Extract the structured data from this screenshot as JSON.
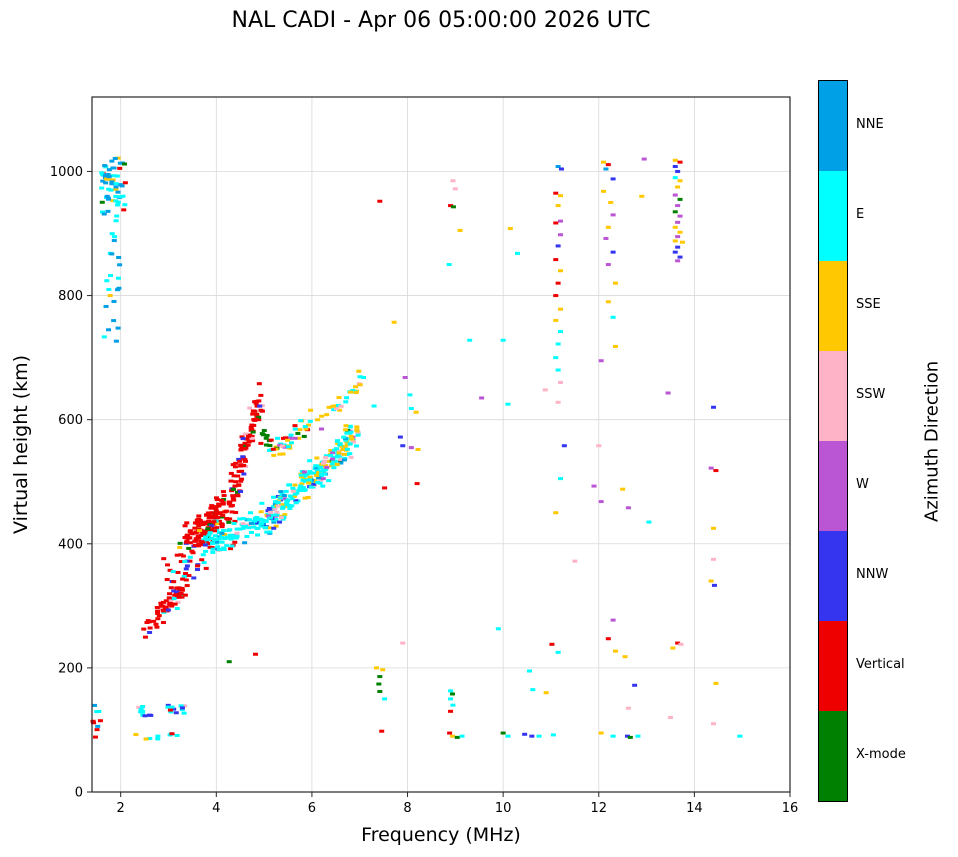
{
  "title": "NAL CADI - Apr 06 05:00:00 2026 UTC",
  "chart_data": {
    "type": "scatter",
    "title": "NAL CADI - Apr 06 05:00:00 2026 UTC",
    "xlabel": "Frequency (MHz)",
    "ylabel": "Virtual height (km)",
    "xlim": [
      1.4,
      16
    ],
    "ylim": [
      0,
      1120
    ],
    "xticks": [
      2,
      4,
      6,
      8,
      10,
      12,
      14,
      16
    ],
    "yticks": [
      0,
      200,
      400,
      600,
      800,
      1000
    ],
    "grid": true,
    "legend_position": "right-colorbar",
    "colorbar_title": "Azimuth Direction",
    "categories": [
      {
        "label": "NNE",
        "color": "#00A0E6"
      },
      {
        "label": "E",
        "color": "#00FFFF"
      },
      {
        "label": "SSE",
        "color": "#FFC800"
      },
      {
        "label": "SSW",
        "color": "#FFB3C6"
      },
      {
        "label": "W",
        "color": "#BA55D3"
      },
      {
        "label": "NNW",
        "color": "#3535F0"
      },
      {
        "label": "Vertical",
        "color": "#EE0000"
      },
      {
        "label": "X-mode",
        "color": "#008000"
      }
    ],
    "points": [
      [
        1.78,
        800,
        2
      ],
      [
        2.08,
        1012,
        7
      ],
      [
        1.98,
        1005,
        6
      ],
      [
        2.9,
        376,
        6
      ],
      [
        2.98,
        366,
        6
      ],
      [
        4.82,
        222,
        6
      ],
      [
        4.27,
        210,
        7
      ],
      [
        4.9,
        658,
        6
      ],
      [
        7.35,
        200,
        2
      ],
      [
        7.48,
        197,
        2
      ],
      [
        7.42,
        186,
        7
      ],
      [
        7.4,
        174,
        7
      ],
      [
        7.42,
        162,
        7
      ],
      [
        7.52,
        150,
        1
      ],
      [
        7.46,
        98,
        6
      ],
      [
        7.42,
        952,
        6
      ],
      [
        7.72,
        757,
        2
      ],
      [
        6.98,
        678,
        2
      ],
      [
        7.08,
        668,
        1
      ],
      [
        7.3,
        622,
        1
      ],
      [
        7.95,
        668,
        4
      ],
      [
        8.05,
        640,
        1
      ],
      [
        8.08,
        618,
        1
      ],
      [
        8.18,
        612,
        2
      ],
      [
        8.08,
        555,
        4
      ],
      [
        8.22,
        552,
        2
      ],
      [
        8.2,
        497,
        6
      ],
      [
        7.52,
        490,
        6
      ],
      [
        7.9,
        240,
        3
      ],
      [
        7.85,
        572,
        5
      ],
      [
        7.9,
        558,
        5
      ],
      [
        8.87,
        850,
        1
      ],
      [
        8.95,
        985,
        3
      ],
      [
        9.0,
        972,
        3
      ],
      [
        8.9,
        945,
        6
      ],
      [
        8.96,
        943,
        7
      ],
      [
        9.1,
        905,
        2
      ],
      [
        9.3,
        728,
        1
      ],
      [
        10.0,
        728,
        1
      ],
      [
        9.55,
        635,
        4
      ],
      [
        10.1,
        625,
        1
      ],
      [
        9.9,
        263,
        1
      ],
      [
        8.9,
        163,
        1
      ],
      [
        8.94,
        158,
        7
      ],
      [
        8.9,
        150,
        1
      ],
      [
        8.95,
        140,
        1
      ],
      [
        8.9,
        130,
        6
      ],
      [
        8.88,
        95,
        6
      ],
      [
        8.94,
        90,
        2
      ],
      [
        9.04,
        88,
        7
      ],
      [
        9.14,
        90,
        1
      ],
      [
        10.15,
        908,
        2
      ],
      [
        10.3,
        868,
        1
      ],
      [
        10.0,
        95,
        7
      ],
      [
        10.1,
        90,
        1
      ],
      [
        10.45,
        93,
        5
      ],
      [
        10.6,
        90,
        5
      ],
      [
        10.75,
        90,
        1
      ],
      [
        10.55,
        195,
        1
      ],
      [
        10.62,
        165,
        1
      ],
      [
        10.9,
        160,
        2
      ],
      [
        11.05,
        92,
        1
      ],
      [
        11.15,
        1008,
        0
      ],
      [
        11.22,
        1004,
        5
      ],
      [
        11.1,
        965,
        6
      ],
      [
        11.2,
        961,
        2
      ],
      [
        11.15,
        945,
        2
      ],
      [
        11.2,
        920,
        4
      ],
      [
        11.1,
        917,
        6
      ],
      [
        11.2,
        898,
        4
      ],
      [
        11.15,
        880,
        5
      ],
      [
        11.1,
        858,
        6
      ],
      [
        11.2,
        840,
        2
      ],
      [
        11.15,
        820,
        6
      ],
      [
        11.1,
        800,
        6
      ],
      [
        11.2,
        778,
        2
      ],
      [
        11.1,
        760,
        2
      ],
      [
        11.2,
        742,
        1
      ],
      [
        11.15,
        722,
        1
      ],
      [
        11.1,
        700,
        1
      ],
      [
        11.15,
        680,
        1
      ],
      [
        11.2,
        660,
        3
      ],
      [
        10.88,
        648,
        3
      ],
      [
        11.15,
        628,
        3
      ],
      [
        11.28,
        558,
        5
      ],
      [
        11.2,
        505,
        1
      ],
      [
        11.1,
        450,
        2
      ],
      [
        11.15,
        225,
        1
      ],
      [
        11.02,
        238,
        6
      ],
      [
        11.5,
        372,
        3
      ],
      [
        11.9,
        493,
        4
      ],
      [
        12.1,
        1015,
        2
      ],
      [
        12.2,
        1011,
        6
      ],
      [
        12.15,
        1004,
        0
      ],
      [
        12.3,
        988,
        5
      ],
      [
        12.1,
        968,
        2
      ],
      [
        12.25,
        950,
        2
      ],
      [
        12.3,
        930,
        4
      ],
      [
        12.2,
        910,
        2
      ],
      [
        12.15,
        892,
        4
      ],
      [
        12.3,
        870,
        5
      ],
      [
        12.2,
        850,
        4
      ],
      [
        12.35,
        820,
        2
      ],
      [
        12.2,
        790,
        2
      ],
      [
        12.3,
        765,
        1
      ],
      [
        12.35,
        718,
        2
      ],
      [
        12.05,
        695,
        4
      ],
      [
        12.0,
        558,
        3
      ],
      [
        12.05,
        468,
        4
      ],
      [
        12.5,
        488,
        2
      ],
      [
        12.62,
        458,
        4
      ],
      [
        12.3,
        277,
        4
      ],
      [
        12.2,
        247,
        6
      ],
      [
        12.35,
        227,
        2
      ],
      [
        12.55,
        218,
        2
      ],
      [
        12.75,
        172,
        5
      ],
      [
        12.62,
        135,
        3
      ],
      [
        12.05,
        95,
        2
      ],
      [
        12.3,
        90,
        1
      ],
      [
        12.6,
        90,
        5
      ],
      [
        12.66,
        88,
        7
      ],
      [
        12.82,
        90,
        1
      ],
      [
        12.95,
        1020,
        4
      ],
      [
        12.9,
        960,
        2
      ],
      [
        13.45,
        643,
        4
      ],
      [
        13.05,
        435,
        1
      ],
      [
        13.65,
        240,
        6
      ],
      [
        13.72,
        238,
        3
      ],
      [
        13.55,
        232,
        2
      ],
      [
        13.5,
        120,
        3
      ],
      [
        13.6,
        1018,
        2
      ],
      [
        13.7,
        1015,
        6
      ],
      [
        13.6,
        1008,
        5
      ],
      [
        13.65,
        1000,
        5
      ],
      [
        13.6,
        990,
        1
      ],
      [
        13.7,
        985,
        2
      ],
      [
        13.65,
        975,
        2
      ],
      [
        13.6,
        962,
        4
      ],
      [
        13.7,
        955,
        7
      ],
      [
        13.65,
        945,
        4
      ],
      [
        13.6,
        935,
        7
      ],
      [
        13.7,
        928,
        4
      ],
      [
        13.65,
        918,
        4
      ],
      [
        13.6,
        910,
        2
      ],
      [
        13.7,
        902,
        2
      ],
      [
        13.65,
        895,
        4
      ],
      [
        13.6,
        888,
        2
      ],
      [
        13.75,
        886,
        2
      ],
      [
        13.65,
        878,
        5
      ],
      [
        13.6,
        870,
        5
      ],
      [
        13.7,
        862,
        5
      ],
      [
        13.65,
        856,
        4
      ],
      [
        14.4,
        620,
        5
      ],
      [
        14.35,
        522,
        4
      ],
      [
        14.45,
        518,
        6
      ],
      [
        14.4,
        425,
        2
      ],
      [
        14.4,
        375,
        3
      ],
      [
        14.35,
        340,
        2
      ],
      [
        14.42,
        333,
        5
      ],
      [
        14.45,
        175,
        2
      ],
      [
        14.4,
        110,
        3
      ],
      [
        14.95,
        90,
        1
      ],
      [
        5.65,
        570,
        4
      ],
      [
        6.2,
        585,
        4
      ]
    ],
    "clusters": [
      {
        "mode": "box",
        "n": 55,
        "x": [
          1.6,
          2.1
        ],
        "y": [
          930,
          1022
        ],
        "w": {
          "1": 45,
          "0": 40,
          "2": 5,
          "6": 5,
          "7": 5
        }
      },
      {
        "mode": "box",
        "n": 22,
        "x": [
          1.65,
          2.0
        ],
        "y": [
          715,
          930
        ],
        "w": {
          "1": 50,
          "0": 50
        }
      },
      {
        "mode": "line",
        "n": 70,
        "x0": 2.55,
        "y0": 262,
        "x1": 3.35,
        "y1": 335,
        "xj": 0.1,
        "ys": 20,
        "w": {
          "6": 80,
          "5": 6,
          "3": 6,
          "1": 4,
          "2": 4
        }
      },
      {
        "mode": "line",
        "n": 150,
        "x0": 3.35,
        "y0": 395,
        "x1": 4.35,
        "y1": 465,
        "xj": 0.18,
        "ys": 32,
        "w": {
          "6": 82,
          "5": 5,
          "7": 5,
          "2": 4,
          "1": 4
        }
      },
      {
        "mode": "line",
        "n": 85,
        "x0": 4.35,
        "y0": 480,
        "x1": 4.9,
        "y1": 630,
        "xj": 0.1,
        "ys": 30,
        "w": {
          "6": 85,
          "5": 5,
          "7": 5,
          "3": 5
        }
      },
      {
        "mode": "line",
        "n": 30,
        "x0": 3.0,
        "y0": 340,
        "x1": 4.2,
        "y1": 400,
        "xj": 0.25,
        "ys": 25,
        "w": {
          "6": 70,
          "1": 15,
          "5": 15
        }
      },
      {
        "mode": "line",
        "n": 95,
        "x0": 3.85,
        "y0": 400,
        "x1": 5.1,
        "y1": 440,
        "xj": 0.15,
        "ys": 22,
        "w": {
          "1": 75,
          "0": 8,
          "5": 7,
          "2": 5,
          "3": 5
        }
      },
      {
        "mode": "line",
        "n": 140,
        "x0": 5.0,
        "y0": 435,
        "x1": 6.15,
        "y1": 520,
        "xj": 0.15,
        "ys": 28,
        "w": {
          "1": 60,
          "2": 18,
          "3": 8,
          "0": 6,
          "4": 4,
          "5": 4
        }
      },
      {
        "mode": "line",
        "n": 110,
        "x0": 6.1,
        "y0": 505,
        "x1": 6.9,
        "y1": 580,
        "xj": 0.12,
        "ys": 26,
        "w": {
          "1": 50,
          "2": 25,
          "3": 10,
          "4": 5,
          "0": 5,
          "7": 5
        }
      },
      {
        "mode": "line",
        "n": 45,
        "x0": 5.2,
        "y0": 545,
        "x1": 6.1,
        "y1": 600,
        "xj": 0.15,
        "ys": 22,
        "w": {
          "2": 30,
          "1": 25,
          "3": 15,
          "6": 10,
          "7": 10,
          "4": 10
        }
      },
      {
        "mode": "line",
        "n": 22,
        "x0": 6.35,
        "y0": 608,
        "x1": 7.05,
        "y1": 662,
        "xj": 0.08,
        "ys": 14,
        "w": {
          "2": 55,
          "1": 35,
          "3": 10
        }
      },
      {
        "mode": "box",
        "n": 10,
        "x": [
          4.9,
          5.2
        ],
        "y": [
          555,
          585
        ],
        "w": {
          "7": 80,
          "6": 20
        }
      },
      {
        "mode": "box",
        "n": 9,
        "x": [
          1.42,
          1.58
        ],
        "y": [
          85,
          145
        ],
        "w": {
          "1": 50,
          "0": 30,
          "6": 20
        }
      },
      {
        "mode": "box",
        "n": 11,
        "x": [
          2.25,
          2.65
        ],
        "y": [
          122,
          138
        ],
        "w": {
          "1": 50,
          "5": 20,
          "3": 15,
          "6": 15
        }
      },
      {
        "mode": "box",
        "n": 5,
        "x": [
          2.3,
          2.8
        ],
        "y": [
          85,
          95
        ],
        "w": {
          "1": 40,
          "2": 40,
          "6": 20
        }
      },
      {
        "mode": "box",
        "n": 13,
        "x": [
          2.95,
          3.35
        ],
        "y": [
          124,
          140
        ],
        "w": {
          "6": 30,
          "1": 30,
          "5": 15,
          "3": 15,
          "2": 10
        }
      },
      {
        "mode": "box",
        "n": 4,
        "x": [
          3.0,
          3.2
        ],
        "y": [
          86,
          94
        ],
        "w": {
          "6": 50,
          "1": 50
        }
      }
    ]
  }
}
